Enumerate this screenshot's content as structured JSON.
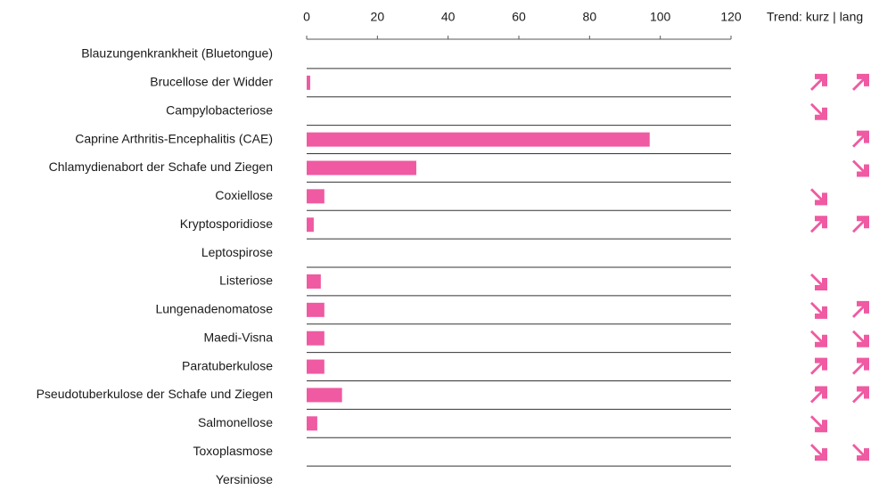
{
  "chart_data": {
    "type": "bar",
    "orientation": "horizontal",
    "trend_header": "Trend: kurz | lang",
    "categories": [
      "Blauzungenkrankheit (Bluetongue)",
      "Brucellose der Widder",
      "Campylobacteriose",
      "Caprine Arthritis-Encephalitis (CAE)",
      "Chlamydienabort der Schafe und Ziegen",
      "Coxiellose",
      "Kryptosporidiose",
      "Leptospirose",
      "Listeriose",
      "Lungenadenomatose",
      "Maedi-Visna",
      "Paratuberkulose",
      "Pseudotuberkulose der Schafe und Ziegen",
      "Salmonellose",
      "Toxoplasmose",
      "Yersiniose"
    ],
    "values": [
      0,
      1,
      0,
      97,
      31,
      5,
      2,
      0,
      4,
      5,
      5,
      5,
      10,
      3,
      0,
      0
    ],
    "trend_short": [
      null,
      "up",
      "down",
      null,
      null,
      "down",
      "up",
      null,
      "down",
      "down",
      "down",
      "up",
      "up",
      "down",
      "down",
      null
    ],
    "trend_long": [
      null,
      "up",
      null,
      "up",
      "down",
      null,
      "up",
      null,
      null,
      "up",
      "down",
      "up",
      "up",
      null,
      "down",
      null
    ],
    "color": "#ef5aa2",
    "xlim": [
      0,
      120
    ],
    "xticks": [
      0,
      20,
      40,
      60,
      80,
      100,
      120
    ],
    "grid": true
  }
}
